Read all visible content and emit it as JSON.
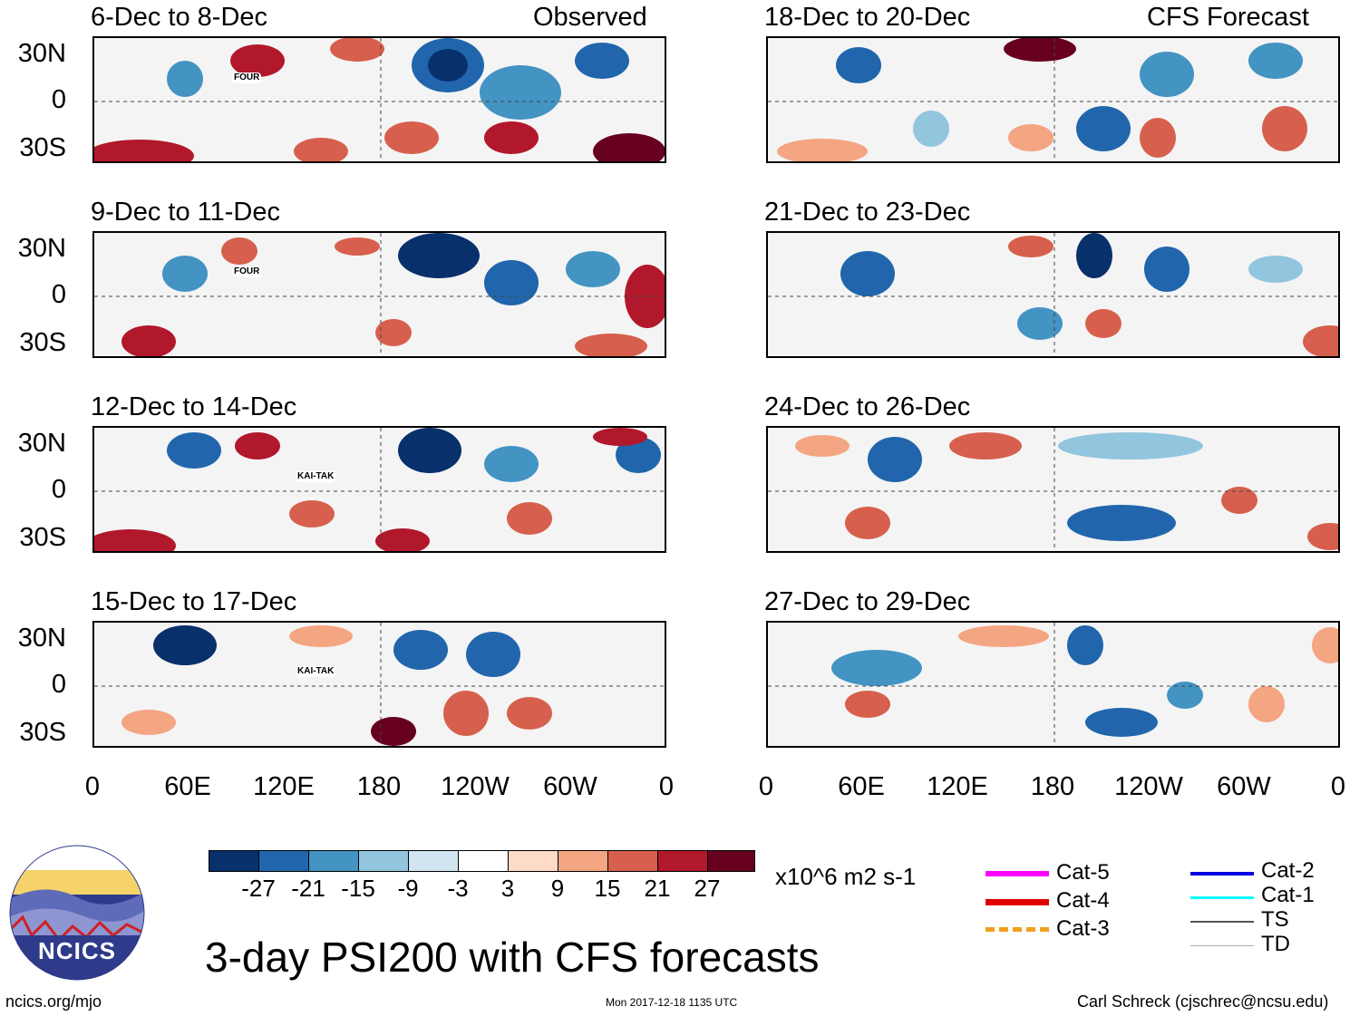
{
  "headers": {
    "observed": "Observed",
    "forecast": "CFS Forecast"
  },
  "panels_left": [
    {
      "title": "6-Dec to 8-Dec",
      "storm": "FOUR"
    },
    {
      "title": "9-Dec to 11-Dec",
      "storm": "FOUR"
    },
    {
      "title": "12-Dec to 14-Dec",
      "storm": "KAI-TAK"
    },
    {
      "title": "15-Dec to 17-Dec",
      "storm": "KAI-TAK"
    }
  ],
  "panels_right": [
    {
      "title": "18-Dec to 20-Dec"
    },
    {
      "title": "21-Dec to 23-Dec"
    },
    {
      "title": "24-Dec to 26-Dec"
    },
    {
      "title": "27-Dec to 29-Dec"
    }
  ],
  "lat_labels": [
    "30N",
    "0",
    "30S"
  ],
  "lon_labels": [
    "0",
    "60E",
    "120E",
    "180",
    "120W",
    "60W",
    "0"
  ],
  "colorbar": {
    "colors": [
      "#08306b",
      "#2166ac",
      "#4393c3",
      "#92c5de",
      "#d1e5f0",
      "#ffffff",
      "#fddbc7",
      "#f4a582",
      "#d6604d",
      "#b2182b",
      "#67001f"
    ],
    "labels": [
      "-27",
      "-21",
      "-15",
      "-9",
      "-3",
      "3",
      "9",
      "15",
      "21",
      "27"
    ],
    "units": "x10^6 m2 s-1"
  },
  "legend": [
    {
      "label": "Cat-5",
      "color": "#ff00ff"
    },
    {
      "label": "Cat-4",
      "color": "#e00000"
    },
    {
      "label": "Cat-3",
      "color": "#f0a020"
    },
    {
      "label": "Cat-2",
      "color": "#0000e0"
    },
    {
      "label": "Cat-1",
      "color": "#00ffff"
    },
    {
      "label": "TS",
      "color": "#555555"
    },
    {
      "label": "TD",
      "color": "#aaaaaa"
    }
  ],
  "logo_text": "NCICS",
  "main_title": "3-day PSI200 with CFS forecasts",
  "footer": {
    "left": "ncics.org/mjo",
    "center": "Mon 2017-12-18 1135 UTC",
    "right": "Carl Schreck (cjschrec@ncsu.edu)"
  }
}
